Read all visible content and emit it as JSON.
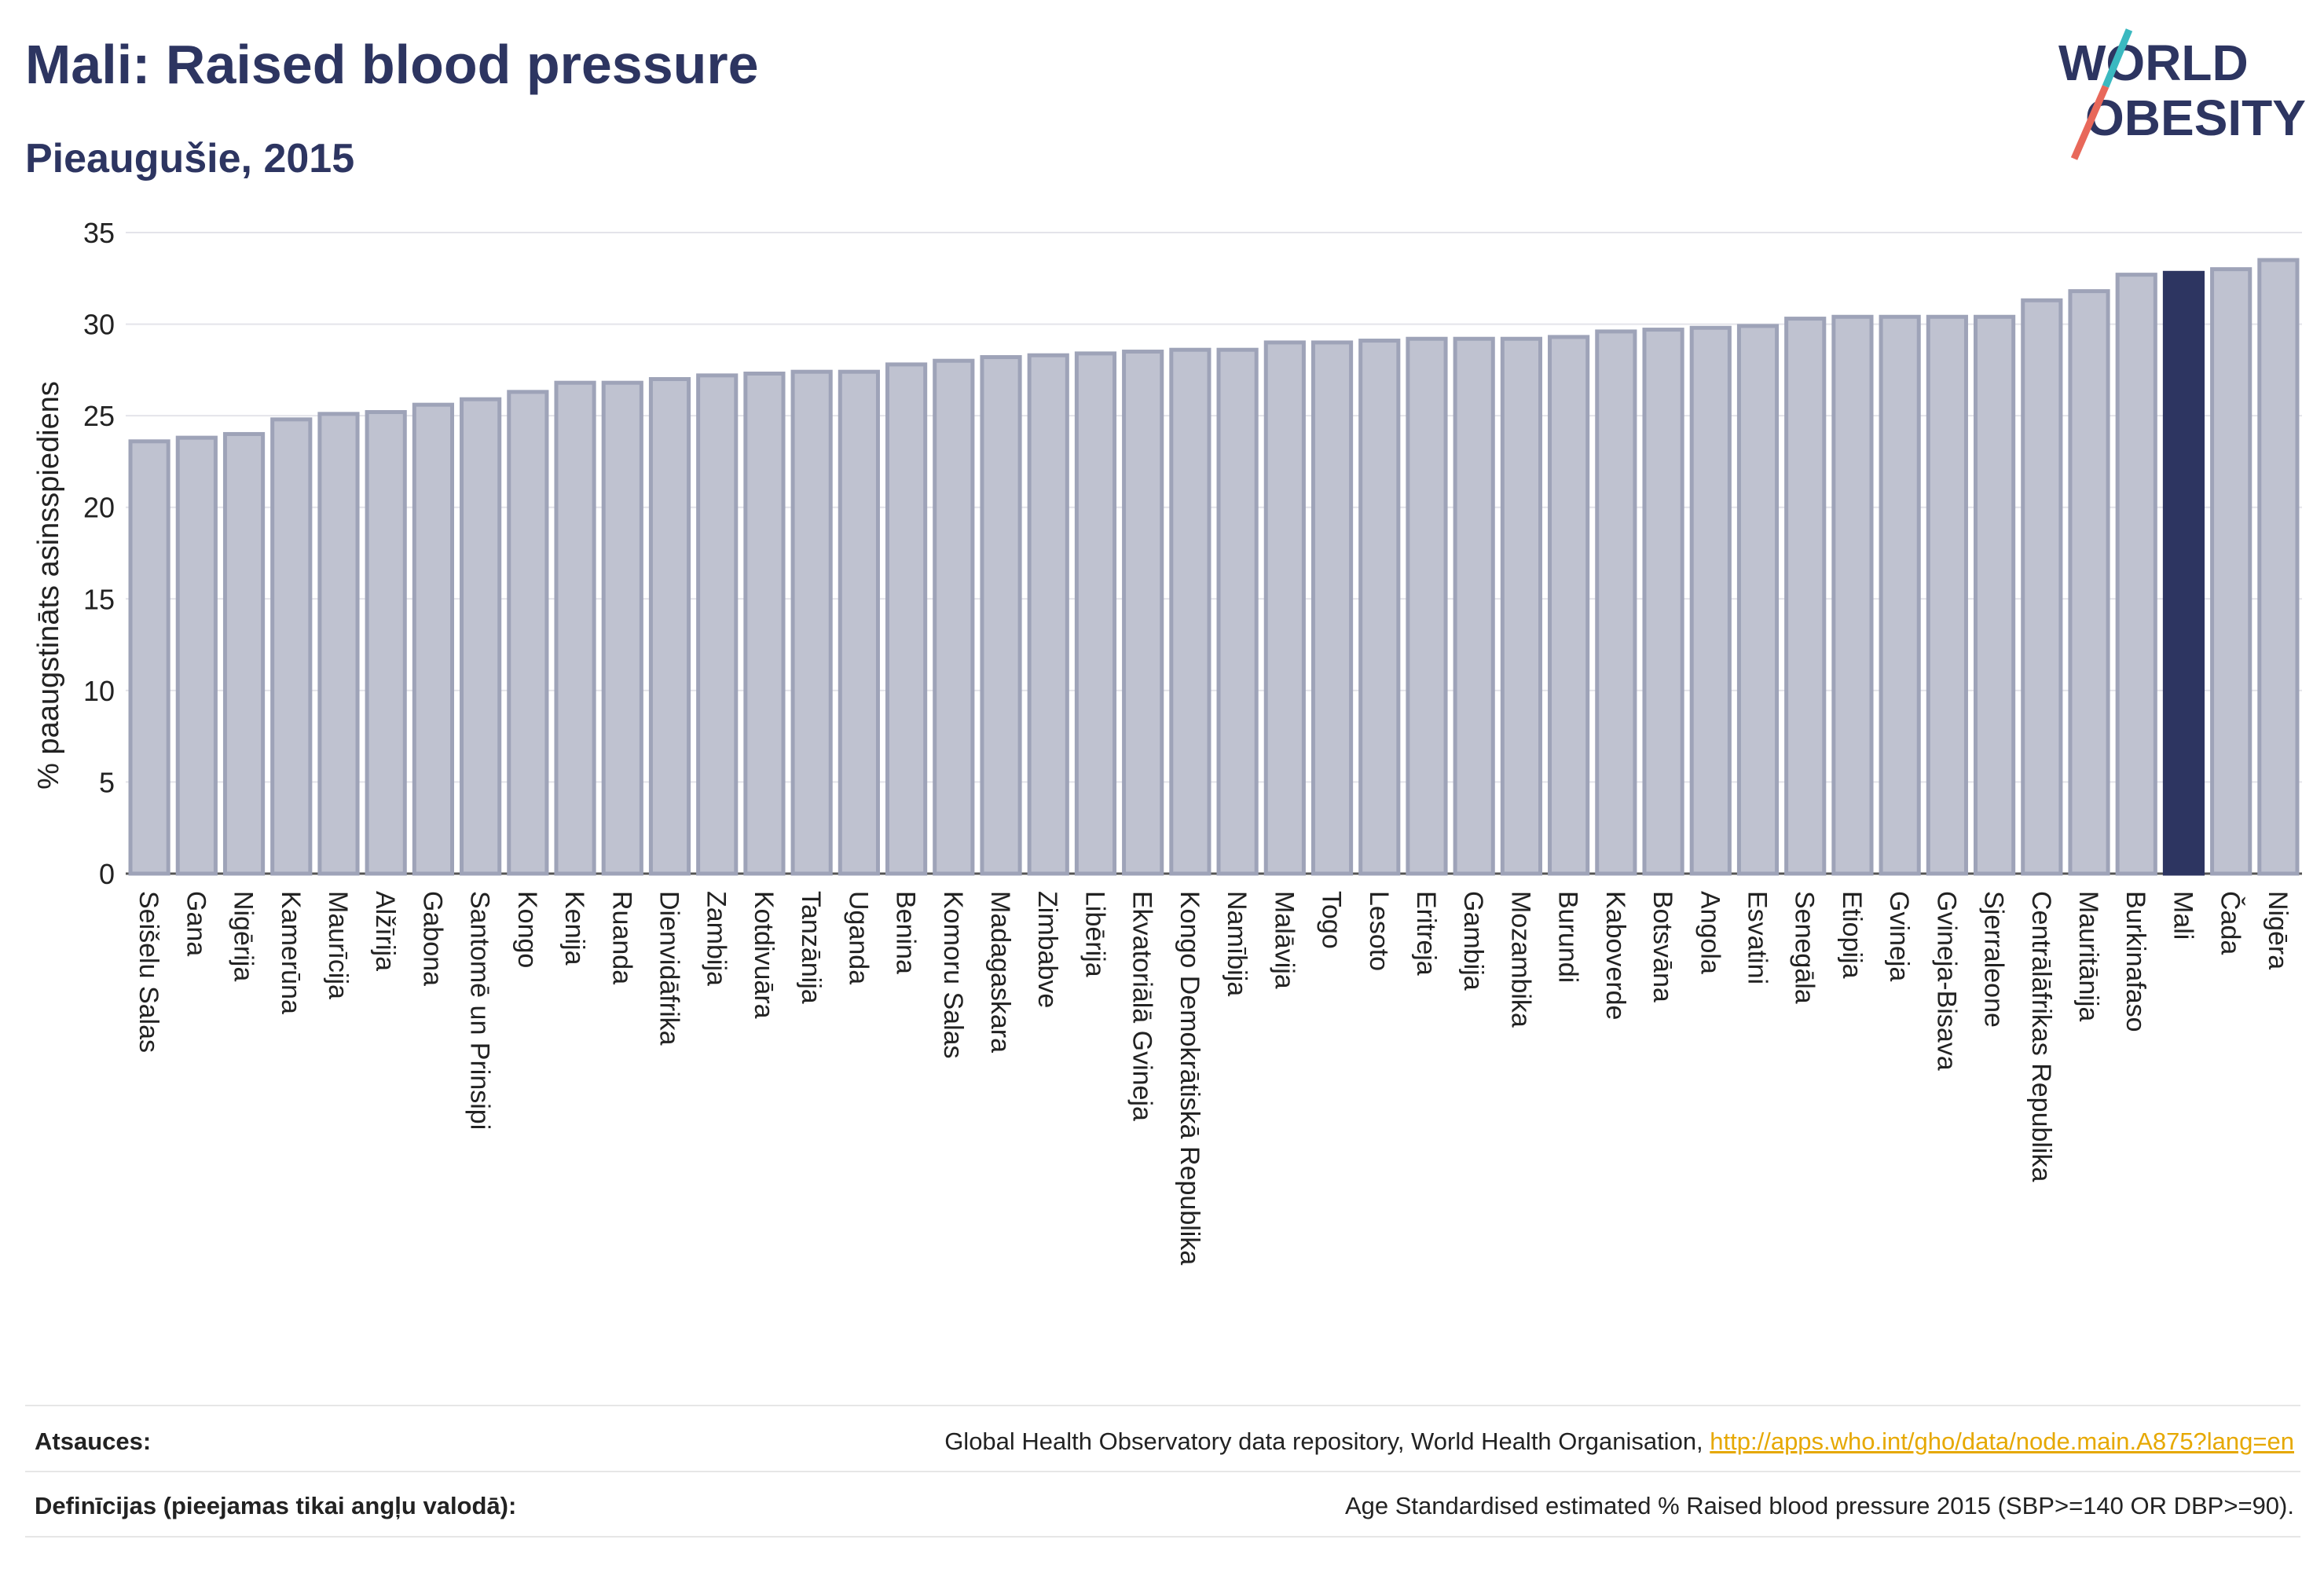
{
  "title": "Mali: Raised blood pressure",
  "subtitle": "Pieaugušie, 2015",
  "logo": {
    "line1": "WORLD",
    "line2": "OBESITY"
  },
  "colors": {
    "bar_default": "#bfc2d0",
    "bar_default_stroke": "#9ea3b8",
    "bar_highlight": "#2d3561",
    "grid": "#e4e4ea",
    "text": "#222222",
    "title": "#2d3561",
    "logo_teal": "#3bb9c0",
    "logo_red": "#e8685a",
    "link": "#e6a800"
  },
  "chart_data": {
    "type": "bar",
    "ylabel": "% paaugstināts asinsspiediens",
    "ylim": [
      0,
      35
    ],
    "yticks": [
      0,
      5,
      10,
      15,
      20,
      25,
      30,
      35
    ],
    "grid": true,
    "highlight": "Mali",
    "categories": [
      "Seišelu Salas",
      "Gana",
      "Nigērija",
      "Kamerūna",
      "Maurīcija",
      "Alžīrija",
      "Gabona",
      "Santomē un Prinsipi",
      "Kongo",
      "Kenija",
      "Ruanda",
      "Dienvidāfrika",
      "Zambija",
      "Kotdivuāra",
      "Tanzānija",
      "Uganda",
      "Benina",
      "Komoru Salas",
      "Madagaskara",
      "Zimbabve",
      "Libērija",
      "Ekvatoriālā Gvineja",
      "Kongo Demokrātiskā Republika",
      "Namībija",
      "Malāvija",
      "Togo",
      "Lesoto",
      "Eritreja",
      "Gambija",
      "Mozambika",
      "Burundi",
      "Kaboverde",
      "Botsvāna",
      "Angola",
      "Esvatini",
      "Senegāla",
      "Etiopija",
      "Gvineja",
      "Gvineja-Bisava",
      "Sjerraleone",
      "Centrālāfrikas Republika",
      "Mauritānija",
      "Burkinafaso",
      "Mali",
      "Čada",
      "Nigēra"
    ],
    "values": [
      23.6,
      23.8,
      24.0,
      24.8,
      25.1,
      25.2,
      25.6,
      25.9,
      26.3,
      26.8,
      26.8,
      27.0,
      27.2,
      27.3,
      27.4,
      27.4,
      27.8,
      28.0,
      28.2,
      28.3,
      28.4,
      28.5,
      28.6,
      28.6,
      29.0,
      29.0,
      29.1,
      29.2,
      29.2,
      29.2,
      29.3,
      29.6,
      29.7,
      29.8,
      29.9,
      30.3,
      30.4,
      30.4,
      30.4,
      30.4,
      31.3,
      31.8,
      32.7,
      32.8,
      33.0,
      33.5
    ]
  },
  "footer": {
    "sources_label": "Atsauces:",
    "sources_text": "Global Health Observatory data repository, World Health Organisation, ",
    "sources_link": "http://apps.who.int/gho/data/node.main.A875?lang=en",
    "definitions_label": "Definīcijas (pieejamas tikai angļu valodā):",
    "definitions_text": "Age Standardised estimated % Raised blood pressure 2015 (SBP>=140 OR DBP>=90)."
  }
}
